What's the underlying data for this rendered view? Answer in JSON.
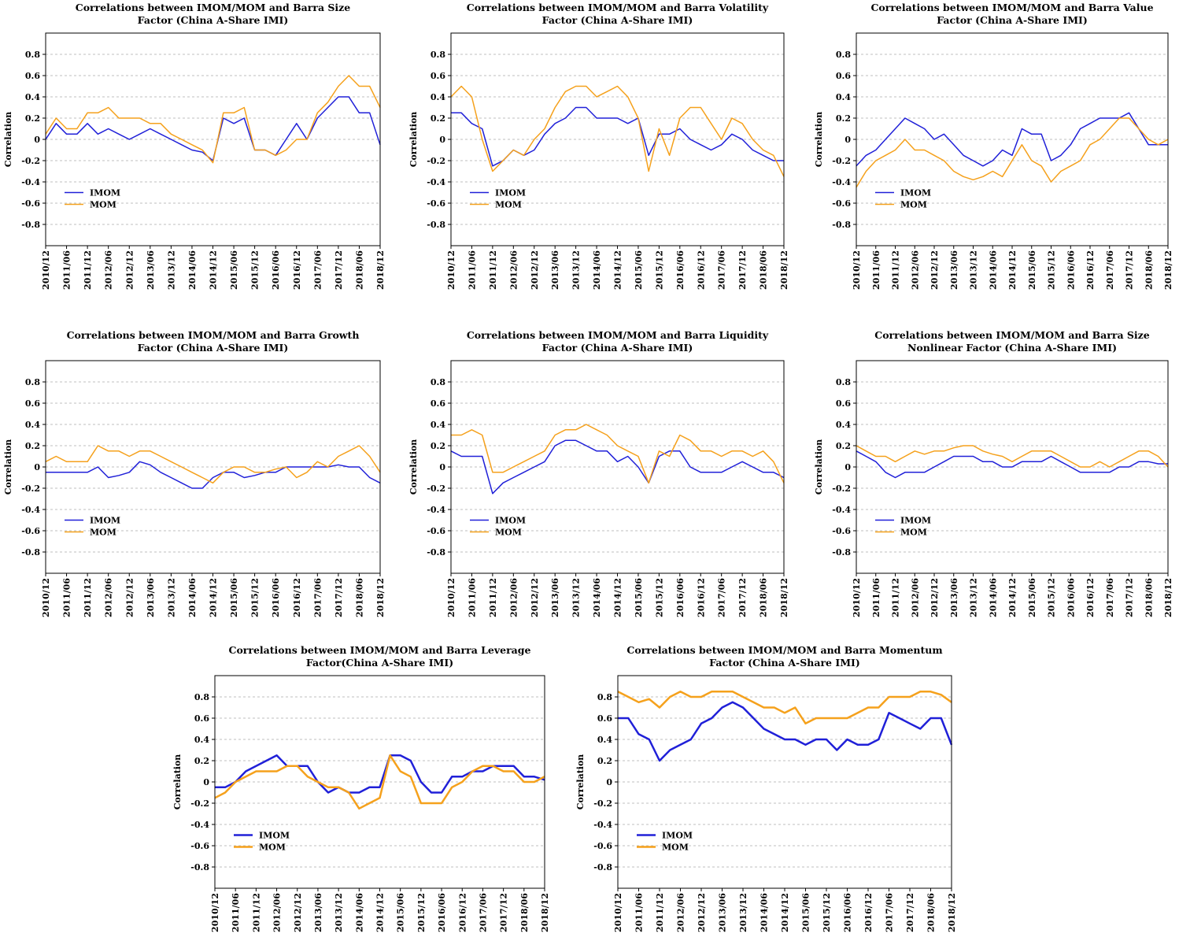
{
  "chart_data": [
    {
      "type": "line",
      "title": "Correlations between IMOM/MOM and Barra Size\nFactor (China A-Share IMI)",
      "y_label": "Correlation",
      "categories": [
        "2010/12",
        null,
        "2011/06",
        null,
        "2011/12",
        null,
        "2012/06",
        null,
        "2012/12",
        null,
        "2013/06",
        null,
        "2013/12",
        null,
        "2014/06",
        null,
        "2014/12",
        null,
        "2015/06",
        null,
        "2015/12",
        null,
        "2016/06",
        null,
        "2016/12",
        null,
        "2017/06",
        null,
        "2017/12",
        null,
        "2018/06",
        null,
        "2018/12"
      ],
      "ylim": [
        -1,
        1
      ],
      "yticks": [
        -0.8,
        -0.6,
        -0.4,
        -0.2,
        0,
        0.2,
        0.4,
        0.6,
        0.8
      ],
      "grid": true,
      "legend": "lower left",
      "line_width": 1.5,
      "series": [
        {
          "name": "IMOM",
          "color": "#2020d8",
          "values": [
            0.0,
            0.15,
            0.05,
            0.05,
            0.15,
            0.05,
            0.1,
            0.05,
            0.0,
            0.05,
            0.1,
            0.05,
            0.0,
            -0.05,
            -0.1,
            -0.12,
            -0.2,
            0.2,
            0.15,
            0.2,
            -0.1,
            -0.1,
            -0.15,
            0.0,
            0.15,
            0.0,
            0.2,
            0.3,
            0.4,
            0.4,
            0.25,
            0.25,
            -0.05
          ]
        },
        {
          "name": "MOM",
          "color": "#f5a11c",
          "values": [
            0.05,
            0.2,
            0.1,
            0.1,
            0.25,
            0.25,
            0.3,
            0.2,
            0.2,
            0.2,
            0.15,
            0.15,
            0.05,
            0.0,
            -0.05,
            -0.1,
            -0.22,
            0.25,
            0.25,
            0.3,
            -0.1,
            -0.1,
            -0.15,
            -0.1,
            0.0,
            0.0,
            0.25,
            0.35,
            0.5,
            0.6,
            0.5,
            0.5,
            0.3
          ]
        }
      ]
    },
    {
      "type": "line",
      "title": "Correlations between IMOM/MOM and Barra Volatility\nFactor (China A-Share IMI)",
      "y_label": "Correlation",
      "categories": [
        "2010/12",
        null,
        "2011/06",
        null,
        "2011/12",
        null,
        "2012/06",
        null,
        "2012/12",
        null,
        "2013/06",
        null,
        "2013/12",
        null,
        "2014/06",
        null,
        "2014/12",
        null,
        "2015/06",
        null,
        "2015/12",
        null,
        "2016/06",
        null,
        "2016/12",
        null,
        "2017/06",
        null,
        "2017/12",
        null,
        "2018/06",
        null,
        "2018/12"
      ],
      "ylim": [
        -1,
        1
      ],
      "yticks": [
        -0.8,
        -0.6,
        -0.4,
        -0.2,
        0,
        0.2,
        0.4,
        0.6,
        0.8
      ],
      "grid": true,
      "legend": "lower left",
      "line_width": 1.5,
      "series": [
        {
          "name": "IMOM",
          "color": "#2020d8",
          "values": [
            0.25,
            0.25,
            0.15,
            0.1,
            -0.25,
            -0.2,
            -0.1,
            -0.15,
            -0.1,
            0.05,
            0.15,
            0.2,
            0.3,
            0.3,
            0.2,
            0.2,
            0.2,
            0.15,
            0.2,
            -0.15,
            0.05,
            0.05,
            0.1,
            0.0,
            -0.05,
            -0.1,
            -0.05,
            0.05,
            0.0,
            -0.1,
            -0.15,
            -0.2,
            -0.2
          ]
        },
        {
          "name": "MOM",
          "color": "#f5a11c",
          "values": [
            0.4,
            0.5,
            0.4,
            0.0,
            -0.3,
            -0.2,
            -0.1,
            -0.15,
            0.0,
            0.1,
            0.3,
            0.45,
            0.5,
            0.5,
            0.4,
            0.45,
            0.5,
            0.4,
            0.2,
            -0.3,
            0.1,
            -0.15,
            0.2,
            0.3,
            0.3,
            0.15,
            0.0,
            0.2,
            0.15,
            0.0,
            -0.1,
            -0.15,
            -0.35
          ]
        }
      ]
    },
    {
      "type": "line",
      "title": "Correlations between IMOM/MOM and Barra Value\nFactor (China A-Share IMI)",
      "y_label": "Correlation",
      "categories": [
        "2010/12",
        null,
        "2011/06",
        null,
        "2011/12",
        null,
        "2012/06",
        null,
        "2012/12",
        null,
        "2013/06",
        null,
        "2013/12",
        null,
        "2014/06",
        null,
        "2014/12",
        null,
        "2015/06",
        null,
        "2015/12",
        null,
        "2016/06",
        null,
        "2016/12",
        null,
        "2017/06",
        null,
        "2017/12",
        null,
        "2018/06",
        null,
        "2018/12"
      ],
      "ylim": [
        -1,
        1
      ],
      "yticks": [
        -0.8,
        -0.6,
        -0.4,
        -0.2,
        0,
        0.2,
        0.4,
        0.6,
        0.8
      ],
      "grid": true,
      "legend": "lower left",
      "line_width": 1.5,
      "series": [
        {
          "name": "IMOM",
          "color": "#2020d8",
          "values": [
            -0.25,
            -0.15,
            -0.1,
            0.0,
            0.1,
            0.2,
            0.15,
            0.1,
            0.0,
            0.05,
            -0.05,
            -0.15,
            -0.2,
            -0.25,
            -0.2,
            -0.1,
            -0.15,
            0.1,
            0.05,
            0.05,
            -0.2,
            -0.15,
            -0.05,
            0.1,
            0.15,
            0.2,
            0.2,
            0.2,
            0.25,
            0.1,
            -0.05,
            -0.05,
            -0.05
          ]
        },
        {
          "name": "MOM",
          "color": "#f5a11c",
          "values": [
            -0.45,
            -0.3,
            -0.2,
            -0.15,
            -0.1,
            0.0,
            -0.1,
            -0.1,
            -0.15,
            -0.2,
            -0.3,
            -0.35,
            -0.38,
            -0.35,
            -0.3,
            -0.35,
            -0.2,
            -0.05,
            -0.2,
            -0.25,
            -0.4,
            -0.3,
            -0.25,
            -0.2,
            -0.05,
            0.0,
            0.1,
            0.2,
            0.2,
            0.1,
            0.0,
            -0.05,
            0.0
          ]
        }
      ]
    },
    {
      "type": "line",
      "title": "Correlations between IMOM/MOM and Barra Growth\nFactor (China A-Share IMI)",
      "y_label": "Correlation",
      "categories": [
        "2010/12",
        null,
        "2011/06",
        null,
        "2011/12",
        null,
        "2012/06",
        null,
        "2012/12",
        null,
        "2013/06",
        null,
        "2013/12",
        null,
        "2014/06",
        null,
        "2014/12",
        null,
        "2015/06",
        null,
        "2015/12",
        null,
        "2016/06",
        null,
        "2016/12",
        null,
        "2017/06",
        null,
        "2017/12",
        null,
        "2018/06",
        null,
        "2018/12"
      ],
      "ylim": [
        -1,
        1
      ],
      "yticks": [
        -0.8,
        -0.6,
        -0.4,
        -0.2,
        0,
        0.2,
        0.4,
        0.6,
        0.8
      ],
      "grid": true,
      "legend": "lower left",
      "line_width": 1.5,
      "series": [
        {
          "name": "IMOM",
          "color": "#2020d8",
          "values": [
            -0.05,
            -0.05,
            -0.05,
            -0.05,
            -0.05,
            0.0,
            -0.1,
            -0.08,
            -0.05,
            0.05,
            0.02,
            -0.05,
            -0.1,
            -0.15,
            -0.2,
            -0.2,
            -0.1,
            -0.05,
            -0.05,
            -0.1,
            -0.08,
            -0.05,
            -0.05,
            0.0,
            0.0,
            0.0,
            0.0,
            0.0,
            0.02,
            0.0,
            0.0,
            -0.1,
            -0.15
          ]
        },
        {
          "name": "MOM",
          "color": "#f5a11c",
          "values": [
            0.05,
            0.1,
            0.05,
            0.05,
            0.05,
            0.2,
            0.15,
            0.15,
            0.1,
            0.15,
            0.15,
            0.1,
            0.05,
            0.0,
            -0.05,
            -0.1,
            -0.15,
            -0.05,
            0.0,
            0.0,
            -0.05,
            -0.05,
            -0.02,
            0.0,
            -0.1,
            -0.05,
            0.05,
            0.0,
            0.1,
            0.15,
            0.2,
            0.1,
            -0.05
          ]
        }
      ]
    },
    {
      "type": "line",
      "title": "Correlations between IMOM/MOM and Barra Liquidity\nFactor (China A-Share IMI)",
      "y_label": "Correlation",
      "categories": [
        "2010/12",
        null,
        "2011/06",
        null,
        "2011/12",
        null,
        "2012/06",
        null,
        "2012/12",
        null,
        "2013/06",
        null,
        "2013/12",
        null,
        "2014/06",
        null,
        "2014/12",
        null,
        "2015/06",
        null,
        "2015/12",
        null,
        "2016/06",
        null,
        "2016/12",
        null,
        "2017/06",
        null,
        "2017/12",
        null,
        "2018/06",
        null,
        "2018/12"
      ],
      "ylim": [
        -1,
        1
      ],
      "yticks": [
        -0.8,
        -0.6,
        -0.4,
        -0.2,
        0,
        0.2,
        0.4,
        0.6,
        0.8
      ],
      "grid": true,
      "legend": "lower left",
      "line_width": 1.5,
      "series": [
        {
          "name": "IMOM",
          "color": "#2020d8",
          "values": [
            0.15,
            0.1,
            0.1,
            0.1,
            -0.25,
            -0.15,
            -0.1,
            -0.05,
            0.0,
            0.05,
            0.2,
            0.25,
            0.25,
            0.2,
            0.15,
            0.15,
            0.05,
            0.1,
            0.0,
            -0.15,
            0.1,
            0.15,
            0.15,
            0.0,
            -0.05,
            -0.05,
            -0.05,
            0.0,
            0.05,
            0.0,
            -0.05,
            -0.05,
            -0.1
          ]
        },
        {
          "name": "MOM",
          "color": "#f5a11c",
          "values": [
            0.3,
            0.3,
            0.35,
            0.3,
            -0.05,
            -0.05,
            0.0,
            0.05,
            0.1,
            0.15,
            0.3,
            0.35,
            0.35,
            0.4,
            0.35,
            0.3,
            0.2,
            0.15,
            0.1,
            -0.15,
            0.15,
            0.1,
            0.3,
            0.25,
            0.15,
            0.15,
            0.1,
            0.15,
            0.15,
            0.1,
            0.15,
            0.05,
            -0.15
          ]
        }
      ]
    },
    {
      "type": "line",
      "title": "Correlations between IMOM/MOM and Barra Size\nNonlinear Factor (China A-Share IMI)",
      "y_label": "Correlation",
      "categories": [
        "2010/12",
        null,
        "2011/06",
        null,
        "2011/12",
        null,
        "2012/06",
        null,
        "2012/12",
        null,
        "2013/06",
        null,
        "2013/12",
        null,
        "2014/06",
        null,
        "2014/12",
        null,
        "2015/06",
        null,
        "2015/12",
        null,
        "2016/06",
        null,
        "2016/12",
        null,
        "2017/06",
        null,
        "2017/12",
        null,
        "2018/06",
        null,
        "2018/12"
      ],
      "ylim": [
        -1,
        1
      ],
      "yticks": [
        -0.8,
        -0.6,
        -0.4,
        -0.2,
        0,
        0.2,
        0.4,
        0.6,
        0.8
      ],
      "grid": true,
      "legend": "lower left",
      "line_width": 1.5,
      "series": [
        {
          "name": "IMOM",
          "color": "#2020d8",
          "values": [
            0.15,
            0.1,
            0.05,
            -0.05,
            -0.1,
            -0.05,
            -0.05,
            -0.05,
            0.0,
            0.05,
            0.1,
            0.1,
            0.1,
            0.05,
            0.05,
            0.0,
            0.0,
            0.05,
            0.05,
            0.05,
            0.1,
            0.05,
            0.0,
            -0.05,
            -0.05,
            -0.05,
            -0.05,
            0.0,
            0.0,
            0.05,
            0.05,
            0.03,
            0.03
          ]
        },
        {
          "name": "MOM",
          "color": "#f5a11c",
          "values": [
            0.2,
            0.15,
            0.1,
            0.1,
            0.05,
            0.1,
            0.15,
            0.12,
            0.15,
            0.15,
            0.18,
            0.2,
            0.2,
            0.15,
            0.12,
            0.1,
            0.05,
            0.1,
            0.15,
            0.15,
            0.15,
            0.1,
            0.05,
            0.0,
            0.0,
            0.05,
            0.0,
            0.05,
            0.1,
            0.15,
            0.15,
            0.1,
            0.0
          ]
        }
      ]
    },
    {
      "type": "line",
      "title": "Correlations between IMOM/MOM and Barra Leverage\nFactor(China A-Share IMI)",
      "y_label": "Correlation",
      "categories": [
        "2010/12",
        null,
        "2011/06",
        null,
        "2011/12",
        null,
        "2012/06",
        null,
        "2012/12",
        null,
        "2013/06",
        null,
        "2013/12",
        null,
        "2014/06",
        null,
        "2014/12",
        null,
        "2015/06",
        null,
        "2015/12",
        null,
        "2016/06",
        null,
        "2016/12",
        null,
        "2017/06",
        null,
        "2017/12",
        null,
        "2018/06",
        null,
        "2018/12"
      ],
      "ylim": [
        -1,
        1
      ],
      "yticks": [
        -0.8,
        -0.6,
        -0.4,
        -0.2,
        0,
        0.2,
        0.4,
        0.6,
        0.8
      ],
      "grid": true,
      "legend": "lower left",
      "line_width": 2.5,
      "series": [
        {
          "name": "IMOM",
          "color": "#2020d8",
          "values": [
            -0.05,
            -0.05,
            0.0,
            0.1,
            0.15,
            0.2,
            0.25,
            0.15,
            0.15,
            0.15,
            0.0,
            -0.1,
            -0.05,
            -0.1,
            -0.1,
            -0.05,
            -0.05,
            0.25,
            0.25,
            0.2,
            0.0,
            -0.1,
            -0.1,
            0.05,
            0.05,
            0.1,
            0.1,
            0.15,
            0.15,
            0.15,
            0.05,
            0.05,
            0.02
          ]
        },
        {
          "name": "MOM",
          "color": "#f5a11c",
          "values": [
            -0.15,
            -0.1,
            0.0,
            0.05,
            0.1,
            0.1,
            0.1,
            0.15,
            0.15,
            0.05,
            0.0,
            -0.05,
            -0.05,
            -0.1,
            -0.25,
            -0.2,
            -0.15,
            0.25,
            0.1,
            0.05,
            -0.2,
            -0.2,
            -0.2,
            -0.05,
            0.0,
            0.1,
            0.15,
            0.15,
            0.1,
            0.1,
            0.0,
            0.0,
            0.05
          ]
        }
      ]
    },
    {
      "type": "line",
      "title": "Correlations between IMOM/MOM and Barra Momentum\nFactor (China A-Share IMI)",
      "y_label": "Correlation",
      "categories": [
        "2010/12",
        null,
        "2011/06",
        null,
        "2011/12",
        null,
        "2012/06",
        null,
        "2012/12",
        null,
        "2013/06",
        null,
        "2013/12",
        null,
        "2014/06",
        null,
        "2014/12",
        null,
        "2015/06",
        null,
        "2015/12",
        null,
        "2016/06",
        null,
        "2016/12",
        null,
        "2017/06",
        null,
        "2017/12",
        null,
        "2018/06",
        null,
        "2018/12"
      ],
      "ylim": [
        -1,
        1
      ],
      "yticks": [
        -0.8,
        -0.6,
        -0.4,
        -0.2,
        0,
        0.2,
        0.4,
        0.6,
        0.8
      ],
      "grid": true,
      "legend": "lower left",
      "line_width": 2.5,
      "series": [
        {
          "name": "IMOM",
          "color": "#2020d8",
          "values": [
            0.6,
            0.6,
            0.45,
            0.4,
            0.2,
            0.3,
            0.35,
            0.4,
            0.55,
            0.6,
            0.7,
            0.75,
            0.7,
            0.6,
            0.5,
            0.45,
            0.4,
            0.4,
            0.35,
            0.4,
            0.4,
            0.3,
            0.4,
            0.35,
            0.35,
            0.4,
            0.65,
            0.6,
            0.55,
            0.5,
            0.6,
            0.6,
            0.35
          ]
        },
        {
          "name": "MOM",
          "color": "#f5a11c",
          "values": [
            0.85,
            0.8,
            0.75,
            0.78,
            0.7,
            0.8,
            0.85,
            0.8,
            0.8,
            0.85,
            0.85,
            0.85,
            0.8,
            0.75,
            0.7,
            0.7,
            0.65,
            0.7,
            0.55,
            0.6,
            0.6,
            0.6,
            0.6,
            0.65,
            0.7,
            0.7,
            0.8,
            0.8,
            0.8,
            0.85,
            0.85,
            0.82,
            0.75
          ]
        }
      ]
    }
  ]
}
